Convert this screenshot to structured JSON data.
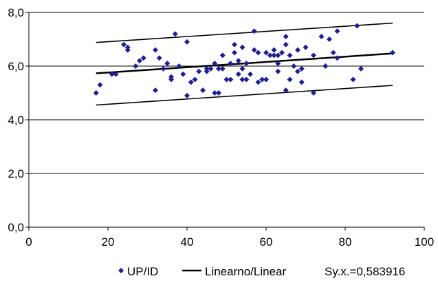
{
  "chart_data": {
    "type": "scatter",
    "title": "",
    "xlabel": "",
    "ylabel": "",
    "xlim": [
      0,
      100
    ],
    "ylim": [
      0,
      8
    ],
    "x_ticks": [
      0,
      20,
      40,
      60,
      80,
      100
    ],
    "y_ticks": [
      0,
      2,
      4,
      6,
      8
    ],
    "x_tick_labels": [
      "0",
      "20",
      "40",
      "60",
      "80",
      "100"
    ],
    "y_tick_labels": [
      "0,0",
      "2,0",
      "4,0",
      "6,0",
      "8,0"
    ],
    "grid": "horizontal",
    "legend_position": "bottom",
    "colors": {
      "points": "#1f1f8f",
      "lines": "#000000",
      "grid": "#000000"
    },
    "series": [
      {
        "name": "UP/ID",
        "marker": "diamond",
        "points": [
          [
            17,
            5.0
          ],
          [
            18,
            5.3
          ],
          [
            21,
            5.7
          ],
          [
            22,
            5.7
          ],
          [
            24,
            6.8
          ],
          [
            25,
            6.7
          ],
          [
            25,
            6.6
          ],
          [
            27,
            6.0
          ],
          [
            28,
            6.2
          ],
          [
            29,
            6.3
          ],
          [
            32,
            6.6
          ],
          [
            32,
            5.1
          ],
          [
            33,
            6.3
          ],
          [
            34,
            5.9
          ],
          [
            35,
            6.1
          ],
          [
            36,
            5.5
          ],
          [
            36,
            5.6
          ],
          [
            37,
            7.2
          ],
          [
            38,
            6.0
          ],
          [
            39,
            5.7
          ],
          [
            40,
            6.9
          ],
          [
            40,
            4.9
          ],
          [
            42,
            5.5
          ],
          [
            43,
            5.8
          ],
          [
            44,
            5.1
          ],
          [
            45,
            5.9
          ],
          [
            46,
            5.9
          ],
          [
            47,
            6.1
          ],
          [
            47,
            5.0
          ],
          [
            48,
            5.0
          ],
          [
            49,
            5.9
          ],
          [
            49,
            6.4
          ],
          [
            50,
            5.5
          ],
          [
            51,
            6.1
          ],
          [
            52,
            6.8
          ],
          [
            52,
            6.5
          ],
          [
            53,
            6.2
          ],
          [
            53,
            5.7
          ],
          [
            54,
            6.7
          ],
          [
            54,
            5.9
          ],
          [
            55,
            6.1
          ],
          [
            55,
            5.5
          ],
          [
            56,
            5.7
          ],
          [
            57,
            7.3
          ],
          [
            57,
            6.6
          ],
          [
            58,
            6.5
          ],
          [
            59,
            5.5
          ],
          [
            60,
            6.5
          ],
          [
            61,
            6.4
          ],
          [
            62,
            6.6
          ],
          [
            62,
            6.4
          ],
          [
            63,
            6.4
          ],
          [
            63,
            5.8
          ],
          [
            64,
            6.5
          ],
          [
            65,
            7.1
          ],
          [
            65,
            6.8
          ],
          [
            65,
            5.1
          ],
          [
            66,
            6.4
          ],
          [
            67,
            6.0
          ],
          [
            68,
            6.6
          ],
          [
            68,
            5.8
          ],
          [
            69,
            5.4
          ],
          [
            70,
            6.7
          ],
          [
            72,
            5.0
          ],
          [
            72,
            6.4
          ],
          [
            74,
            7.1
          ],
          [
            75,
            6.0
          ],
          [
            76,
            7.0
          ],
          [
            77,
            6.5
          ],
          [
            78,
            6.3
          ],
          [
            78,
            7.3
          ],
          [
            82,
            5.5
          ],
          [
            83,
            7.5
          ],
          [
            84,
            5.9
          ],
          [
            92,
            6.5
          ],
          [
            58,
            5.4
          ],
          [
            60,
            5.5
          ],
          [
            41,
            5.4
          ],
          [
            45,
            5.8
          ],
          [
            51,
            5.5
          ],
          [
            63,
            6.1
          ],
          [
            69,
            5.9
          ],
          [
            66,
            5.5
          ],
          [
            54,
            5.5
          ],
          [
            48,
            5.9
          ]
        ]
      },
      {
        "name": "Linearno/Linear",
        "kind": "line",
        "lines": [
          {
            "x": [
              17,
              92
            ],
            "y": [
              6.88,
              7.6
            ]
          },
          {
            "x": [
              17,
              92
            ],
            "y": [
              5.73,
              6.47
            ]
          },
          {
            "x": [
              17,
              92
            ],
            "y": [
              4.55,
              5.28
            ]
          }
        ]
      }
    ],
    "annotation": "Sy.x.=0,583916"
  }
}
